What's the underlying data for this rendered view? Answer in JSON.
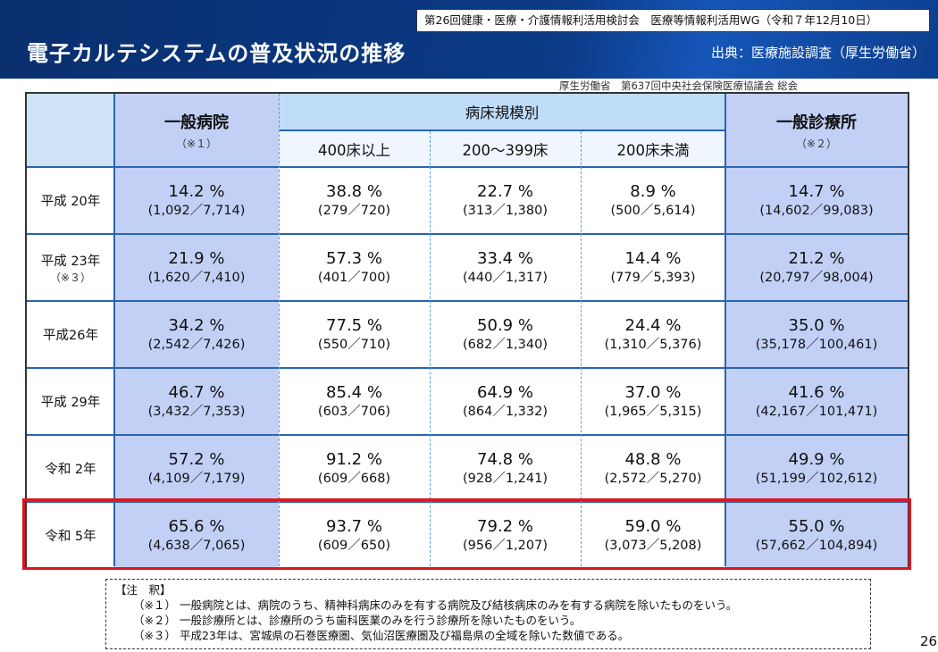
{
  "header": {
    "meeting": "第26回健康・医療・介護情報利活用検討会　医療等情報利活用WG（令和７年12月10日）",
    "title": "電子カルテシステムの普及状況の推移",
    "source": "出典：医療施設調査（厚生労働省）",
    "reference": "厚生労働省　第637回中央社会保険医療協議会 総会"
  },
  "table": {
    "col_general": "一般病院",
    "col_general_note": "（※１）",
    "col_beds": "病床規模別",
    "col_400": "400床以上",
    "col_200": "200～399床",
    "col_under200": "200床未満",
    "col_clinic": "一般診療所",
    "col_clinic_note": "（※２）",
    "rows": [
      {
        "year": "平成 20年",
        "note": "",
        "cells": [
          [
            "14.2 %",
            "(1,092／7,714)"
          ],
          [
            "38.8 %",
            "(279／720)"
          ],
          [
            "22.7 %",
            "(313／1,380)"
          ],
          [
            "8.9 %",
            "(500／5,614)"
          ],
          [
            "14.7 %",
            "(14,602／99,083)"
          ]
        ]
      },
      {
        "year": "平成 23年",
        "note": "（※３）",
        "cells": [
          [
            "21.9 %",
            "(1,620／7,410)"
          ],
          [
            "57.3 %",
            "(401／700)"
          ],
          [
            "33.4 %",
            "(440／1,317)"
          ],
          [
            "14.4 %",
            "(779／5,393)"
          ],
          [
            "21.2 %",
            "(20,797／98,004)"
          ]
        ]
      },
      {
        "year": "平成26年",
        "note": "",
        "cells": [
          [
            "34.2 %",
            "(2,542／7,426)"
          ],
          [
            "77.5 %",
            "(550／710)"
          ],
          [
            "50.9 %",
            "(682／1,340)"
          ],
          [
            "24.4 %",
            "(1,310／5,376)"
          ],
          [
            "35.0 %",
            "(35,178／100,461)"
          ]
        ]
      },
      {
        "year": "平成 29年",
        "note": "",
        "cells": [
          [
            "46.7 %",
            "(3,432／7,353)"
          ],
          [
            "85.4 %",
            "(603／706)"
          ],
          [
            "64.9 %",
            "(864／1,332)"
          ],
          [
            "37.0 %",
            "(1,965／5,315)"
          ],
          [
            "41.6 %",
            "(42,167／101,471)"
          ]
        ]
      },
      {
        "year": "令和 2年",
        "note": "",
        "cells": [
          [
            "57.2 %",
            "(4,109／7,179)"
          ],
          [
            "91.2 %",
            "(609／668)"
          ],
          [
            "74.8 %",
            "(928／1,241)"
          ],
          [
            "48.8 %",
            "(2,572／5,270)"
          ],
          [
            "49.9 %",
            "(51,199／102,612)"
          ]
        ]
      },
      {
        "year": "令和 5年",
        "note": "",
        "cells": [
          [
            "65.6 %",
            "(4,638／7,065)"
          ],
          [
            "93.7 %",
            "(609／650)"
          ],
          [
            "79.2 %",
            "(956／1,207)"
          ],
          [
            "59.0 %",
            "(3,073／5,208)"
          ],
          [
            "55.0 %",
            "(57,662／104,894)"
          ]
        ]
      }
    ]
  },
  "notes": {
    "heading": "【注　釈】",
    "items": [
      "（※１） 一般病院とは、病院のうち、精神科病床のみを有する病院及び結核病床のみを有する病院を除いたものをいう。",
      "（※２） 一般診療所とは、診療所のうち歯科医業のみを行う診療所を除いたものをいう。",
      "（※３） 平成23年は、宮城県の石巻医療圏、気仙沼医療圏及び福島県の全域を除いた数値である。"
    ]
  },
  "page_number": "26"
}
